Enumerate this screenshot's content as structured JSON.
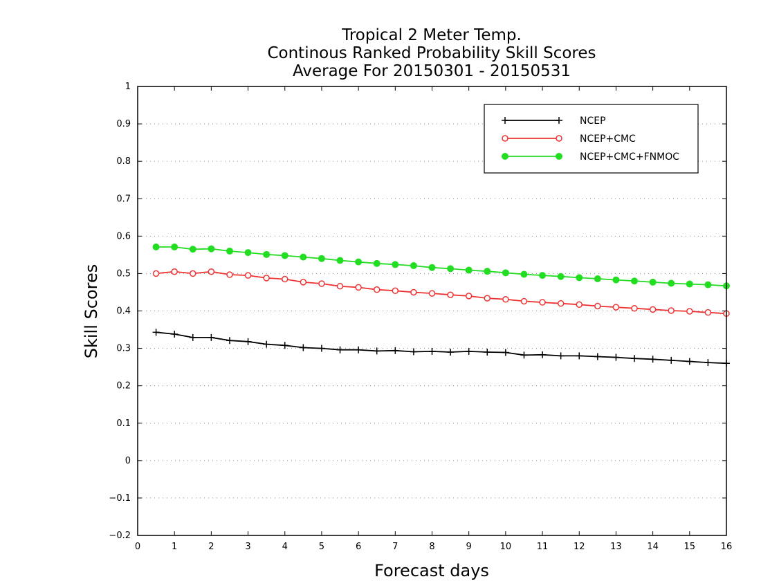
{
  "chart_data": {
    "type": "line",
    "title": [
      "Tropical 2 Meter Temp.",
      "Continous Ranked Probability Skill Scores",
      "Average For 20150301 - 20150531"
    ],
    "xlabel": "Forecast days",
    "ylabel": "Skill Scores",
    "xlim": [
      0,
      16
    ],
    "ylim": [
      -0.2,
      1
    ],
    "xticks": [
      "0",
      "1",
      "2",
      "3",
      "4",
      "5",
      "6",
      "7",
      "8",
      "9",
      "10",
      "11",
      "12",
      "13",
      "14",
      "15",
      "16"
    ],
    "yticks": [
      "-0.2",
      "-0.1",
      "0",
      "0.1",
      "0.2",
      "0.3",
      "0.4",
      "0.5",
      "0.6",
      "0.7",
      "0.8",
      "0.9",
      "1"
    ],
    "grid": "horizontal dotted",
    "legend_position": "top-right",
    "x": [
      0.5,
      1,
      1.5,
      2,
      2.5,
      3,
      3.5,
      4,
      4.5,
      5,
      5.5,
      6,
      6.5,
      7,
      7.5,
      8,
      8.5,
      9,
      9.5,
      10,
      10.5,
      11,
      11.5,
      12,
      12.5,
      13,
      13.5,
      14,
      14.5,
      15,
      15.5,
      16
    ],
    "series": [
      {
        "name": "NCEP",
        "color": "#000000",
        "marker": "plus",
        "values": [
          0.343,
          0.338,
          0.329,
          0.329,
          0.321,
          0.318,
          0.311,
          0.308,
          0.302,
          0.3,
          0.296,
          0.296,
          0.293,
          0.294,
          0.291,
          0.292,
          0.29,
          0.292,
          0.29,
          0.289,
          0.282,
          0.283,
          0.28,
          0.28,
          0.278,
          0.276,
          0.273,
          0.271,
          0.268,
          0.265,
          0.262,
          0.26
        ]
      },
      {
        "name": "NCEP+CMC",
        "color": "#ee3333",
        "marker": "open-circle",
        "values": [
          0.5,
          0.505,
          0.5,
          0.505,
          0.497,
          0.495,
          0.488,
          0.485,
          0.477,
          0.473,
          0.466,
          0.463,
          0.457,
          0.454,
          0.45,
          0.447,
          0.443,
          0.44,
          0.434,
          0.431,
          0.426,
          0.423,
          0.42,
          0.417,
          0.413,
          0.41,
          0.407,
          0.404,
          0.401,
          0.399,
          0.396,
          0.393
        ]
      },
      {
        "name": "NCEP+CMC+FNMOC",
        "color": "#22dd22",
        "marker": "filled-circle",
        "values": [
          0.571,
          0.571,
          0.565,
          0.566,
          0.56,
          0.556,
          0.551,
          0.548,
          0.544,
          0.54,
          0.535,
          0.531,
          0.527,
          0.524,
          0.521,
          0.516,
          0.513,
          0.509,
          0.506,
          0.502,
          0.498,
          0.495,
          0.492,
          0.489,
          0.486,
          0.483,
          0.48,
          0.477,
          0.474,
          0.472,
          0.47,
          0.467
        ]
      }
    ]
  }
}
